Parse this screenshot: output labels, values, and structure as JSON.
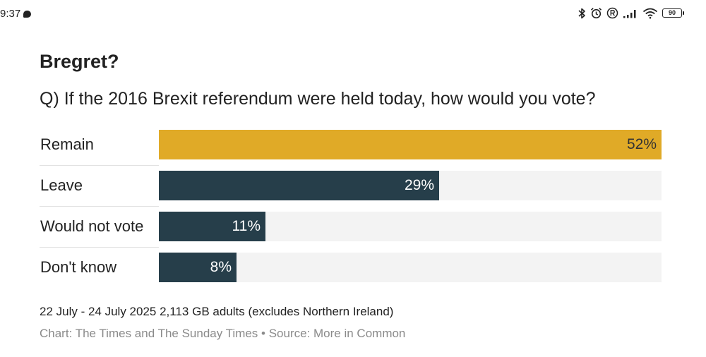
{
  "status_bar": {
    "time": "9:37",
    "battery_level": "90",
    "icons": [
      "chat-bubble-icon",
      "bluetooth-icon",
      "alarm-icon",
      "registered-icon",
      "signal-icon",
      "wifi-icon",
      "battery-icon"
    ]
  },
  "chart_data": {
    "type": "bar",
    "orientation": "horizontal",
    "title": "Bregret?",
    "subtitle": "Q) If the 2016 Brexit referendum were held today, how would you vote?",
    "categories": [
      "Remain",
      "Leave",
      "Would not vote",
      "Don't know"
    ],
    "values": [
      52,
      29,
      11,
      8
    ],
    "value_labels": [
      "52%",
      "29%",
      "11%",
      "8%"
    ],
    "xlim": [
      0,
      52
    ],
    "unit": "%",
    "colors": [
      "#e0aa27",
      "#263e4a",
      "#263e4a",
      "#263e4a"
    ],
    "value_label_colors": [
      "#333333",
      "#ffffff",
      "#ffffff",
      "#ffffff"
    ],
    "track_color": "#f3f3f3",
    "grid": false,
    "legend": "none",
    "note": "22 July - 24 July 2025 2,113 GB adults (excludes Northern Ireland)",
    "credit": "Chart: The Times and The Sunday Times • Source: More in Common"
  }
}
